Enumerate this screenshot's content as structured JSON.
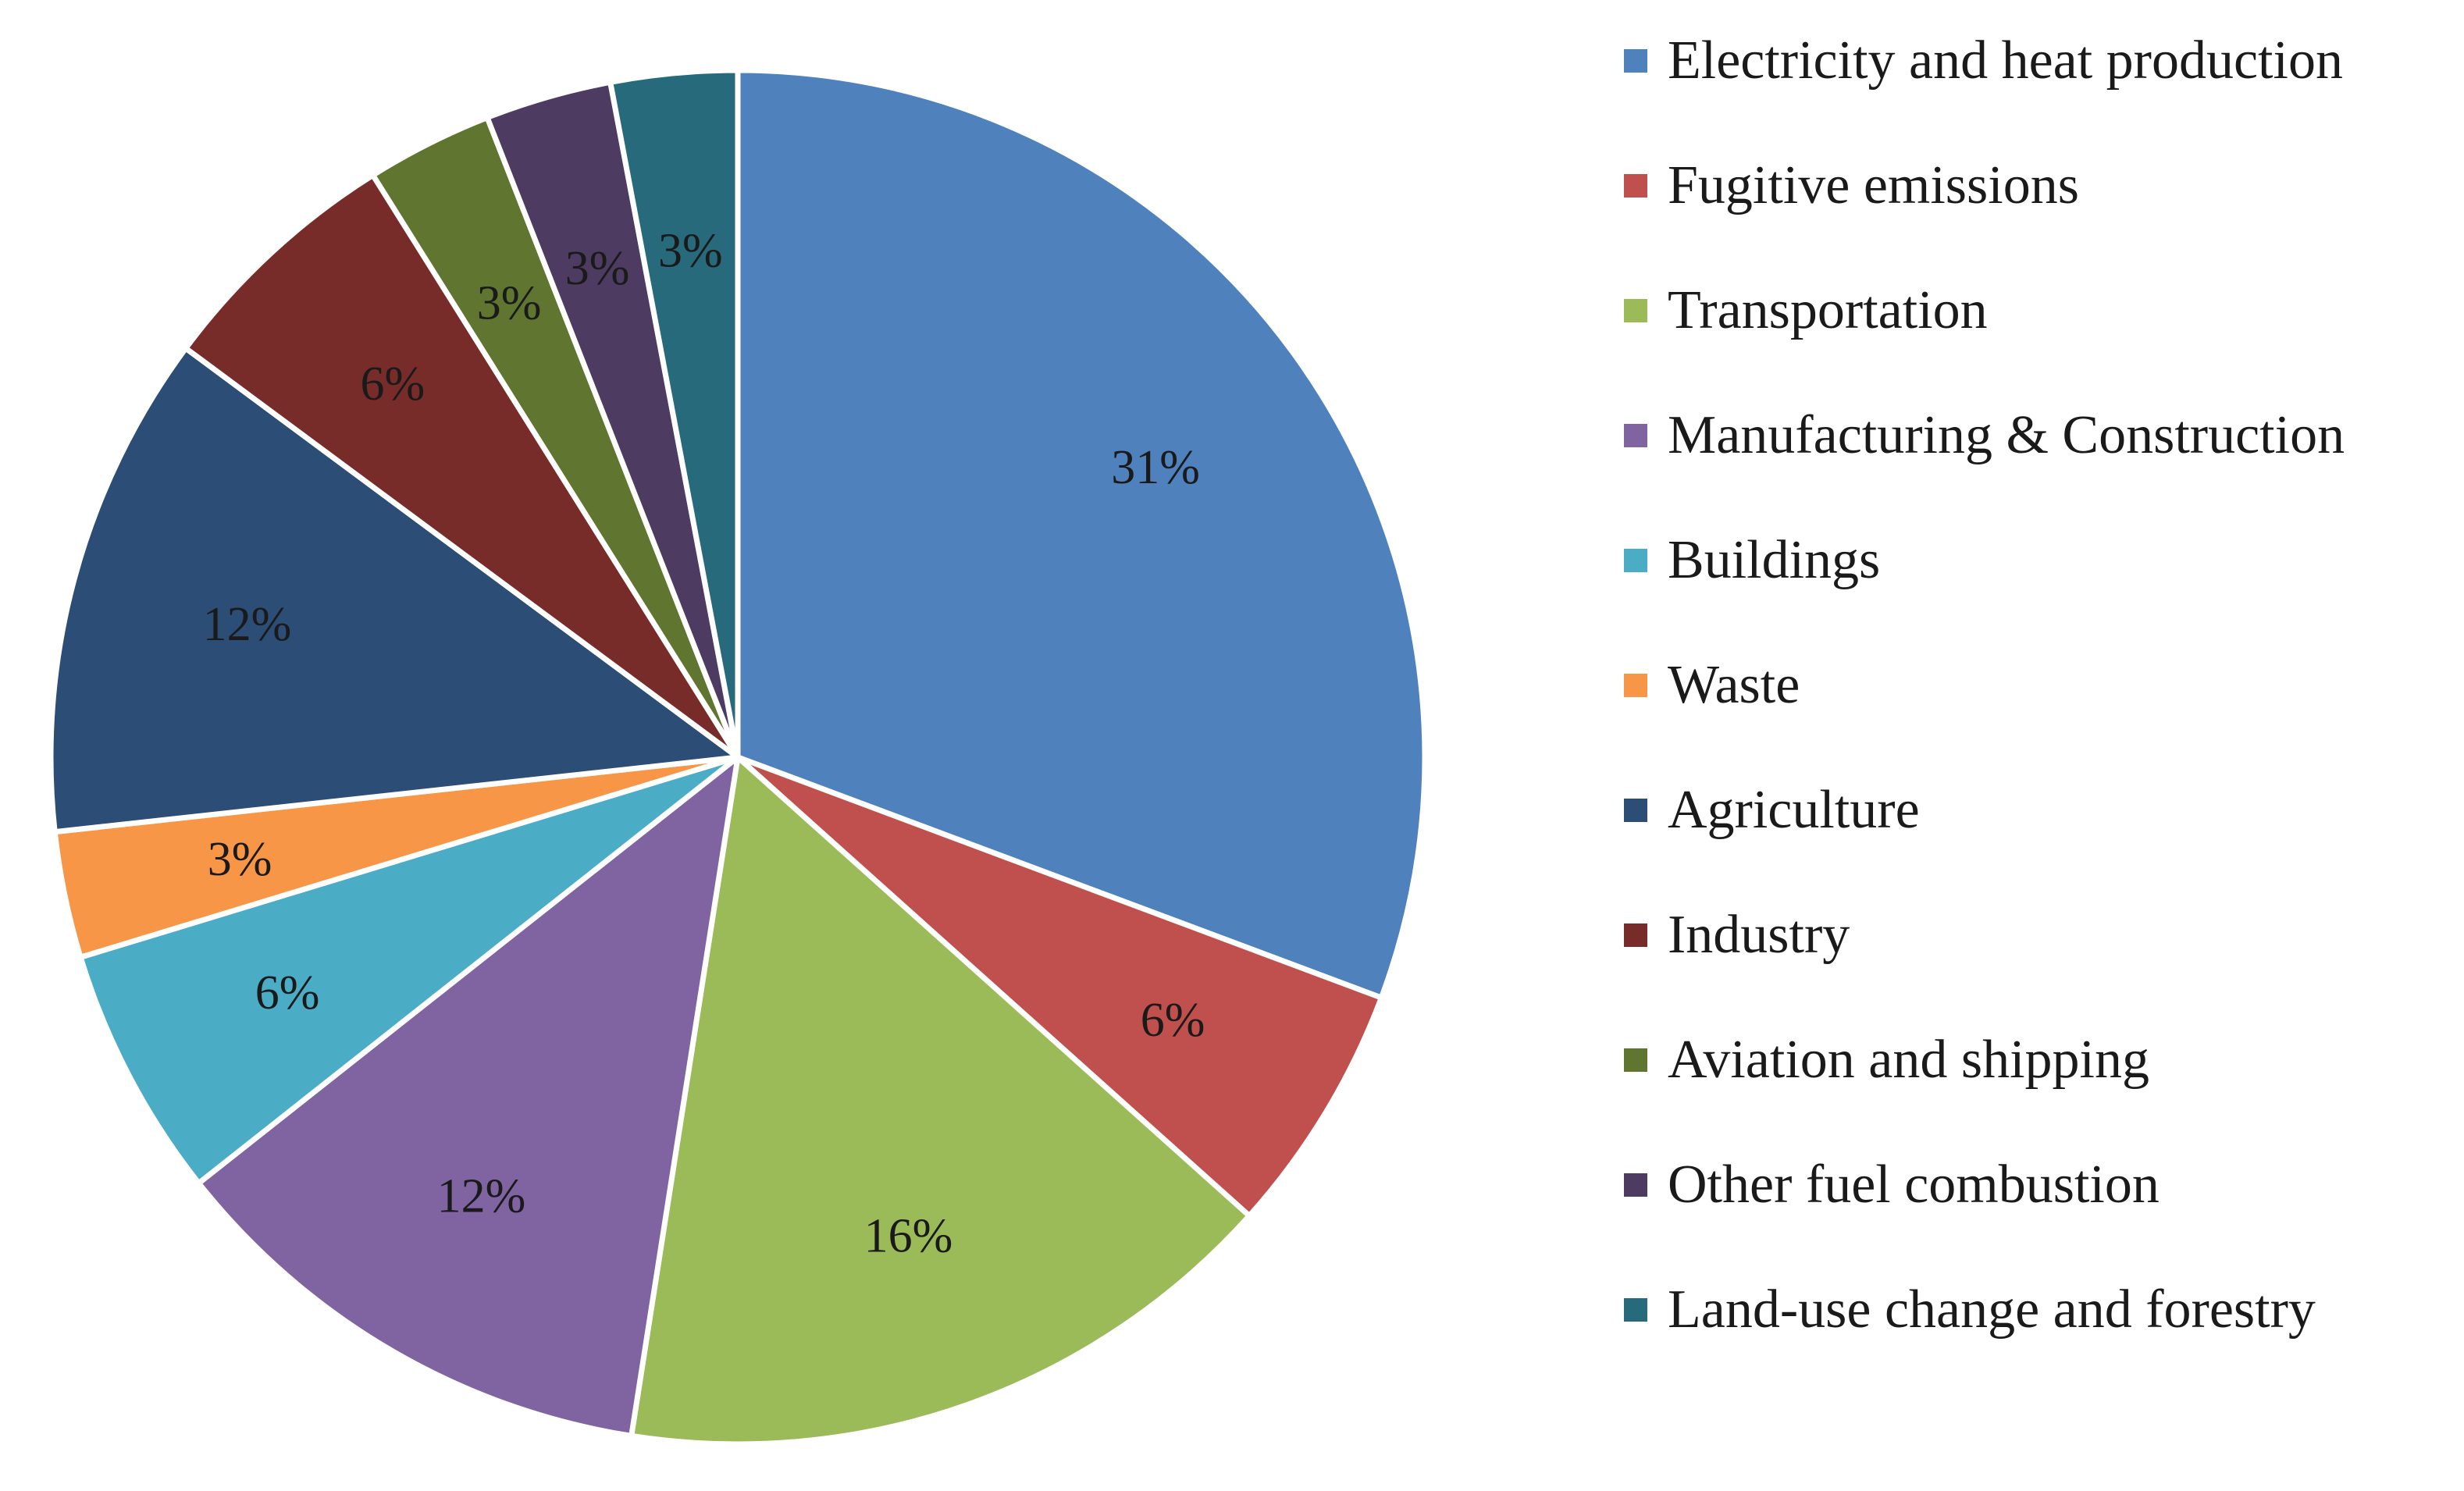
{
  "chart_data": {
    "type": "pie",
    "title": "",
    "slices": [
      {
        "label": "Electricity and heat production",
        "value": 31,
        "display": "31%",
        "color": "#4F81BD"
      },
      {
        "label": "Fugitive emissions",
        "value": 6,
        "display": "6%",
        "color": "#C0504D"
      },
      {
        "label": "Transportation",
        "value": 16,
        "display": "16%",
        "color": "#9BBB59"
      },
      {
        "label": "Manufacturing & Construction",
        "value": 12,
        "display": "12%",
        "color": "#8064A2"
      },
      {
        "label": "Buildings",
        "value": 6,
        "display": "6%",
        "color": "#4BACC6"
      },
      {
        "label": "Waste",
        "value": 3,
        "display": "3%",
        "color": "#F79646"
      },
      {
        "label": "Agriculture",
        "value": 12,
        "display": "12%",
        "color": "#2C4D75"
      },
      {
        "label": "Industry",
        "value": 6,
        "display": "6%",
        "color": "#772C2A"
      },
      {
        "label": "Aviation and shipping",
        "value": 3,
        "display": "3%",
        "color": "#5F7530"
      },
      {
        "label": "Other fuel combustion",
        "value": 3,
        "display": "3%",
        "color": "#4D3B62"
      },
      {
        "label": "Land-use change and forestry",
        "value": 3,
        "display": "3%",
        "color": "#276A7C"
      }
    ],
    "start_angle": "12 o'clock",
    "direction": "clockwise",
    "legend_position": "right"
  }
}
